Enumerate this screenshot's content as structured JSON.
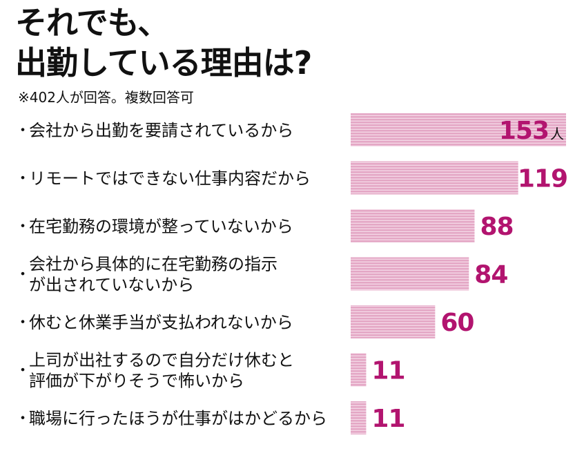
{
  "header": {
    "title_line1": "それでも、",
    "title_line2": "出勤している理由は?",
    "note": "※402人が回答。複数回答可"
  },
  "colors": {
    "bar": "#e4a7c5",
    "bar_stripe": "#f4d7e6",
    "value": "#b2146f",
    "text": "#111111"
  },
  "chart_data": {
    "type": "bar",
    "orientation": "horizontal",
    "title": "それでも、出勤している理由は?",
    "note": "※402人が回答。複数回答可",
    "unit": "人",
    "bullet": "・",
    "categories": [
      [
        "会社から出勤を要請されているから"
      ],
      [
        "リモートではできない仕事内容だから"
      ],
      [
        "在宅勤務の環境が整っていないから"
      ],
      [
        "会社から具体的に在宅勤務の指示",
        "が出されていないから"
      ],
      [
        "休むと休業手当が支払われないから"
      ],
      [
        "上司が出社するので自分だけ休むと",
        "評価が下がりそうで怖いから"
      ],
      [
        "職場に行ったほうが仕事がはかどるから"
      ]
    ],
    "values": [
      153,
      119,
      88,
      84,
      60,
      11,
      11
    ],
    "value_labels": [
      "153",
      "119",
      "88",
      "84",
      "60",
      "11",
      "11"
    ],
    "xlim": [
      0,
      153
    ],
    "grid": false,
    "legend": "none"
  }
}
